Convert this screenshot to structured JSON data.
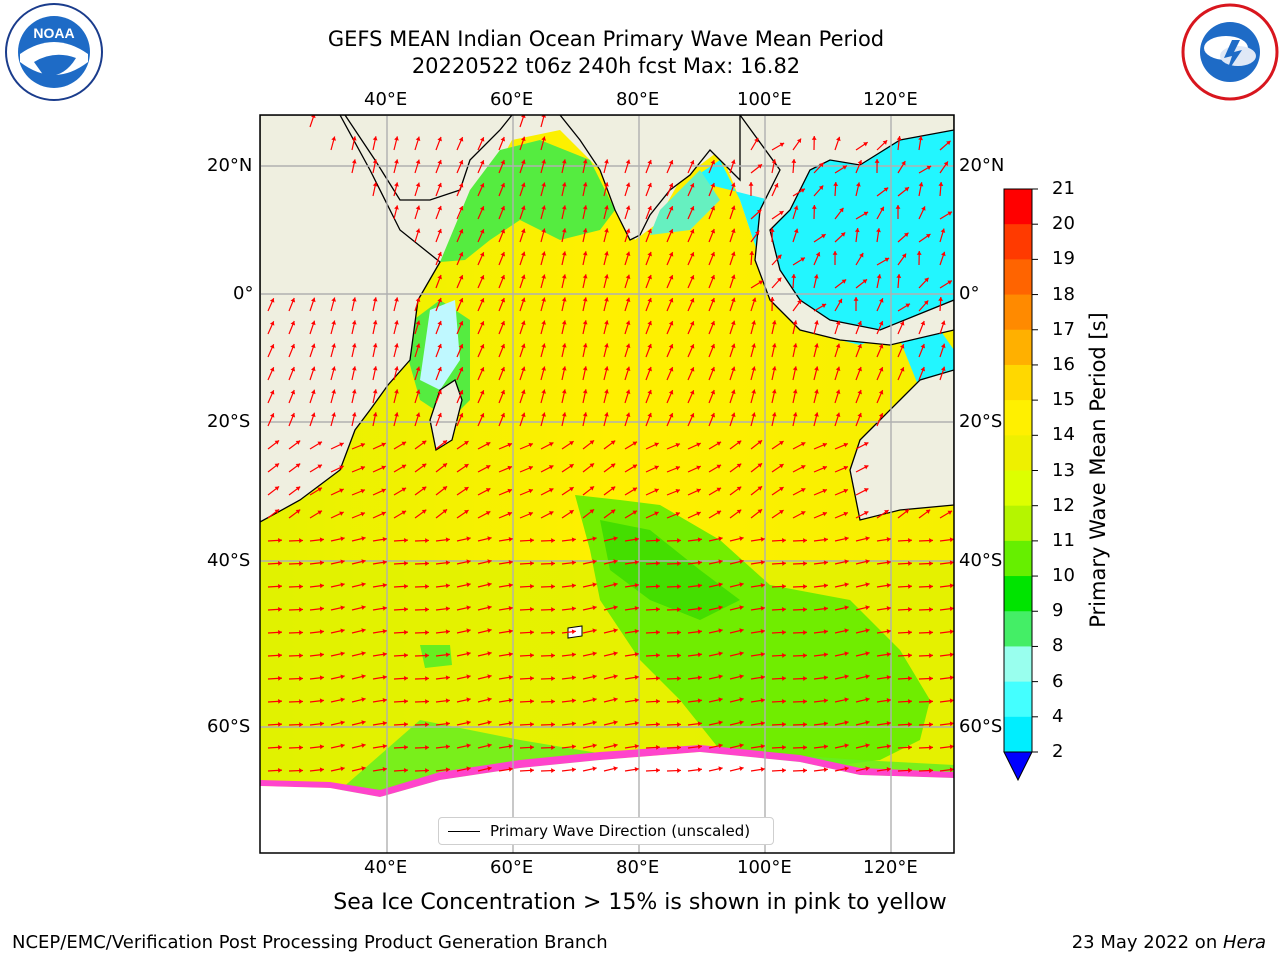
{
  "header": {
    "title_line1": "GEFS MEAN Indian Ocean Primary Wave Mean Period",
    "title_line2": "20220522 t06z 240h fcst   Max: 16.82"
  },
  "axes": {
    "lon_labels": [
      "40°E",
      "60°E",
      "80°E",
      "100°E",
      "120°E"
    ],
    "lat_labels": [
      "20°N",
      "0°",
      "20°S",
      "40°S",
      "60°S"
    ]
  },
  "colorbar": {
    "title": "Primary Wave Mean Period [s]",
    "ticks": [
      "21",
      "20",
      "19",
      "18",
      "17",
      "16",
      "15",
      "14",
      "13",
      "12",
      "11",
      "10",
      "9",
      "8",
      "6",
      "4",
      "2"
    ],
    "colors": [
      "#ff0000",
      "#ff3a00",
      "#ff6400",
      "#ff8a00",
      "#ffb000",
      "#ffd800",
      "#fff000",
      "#eef000",
      "#ddff00",
      "#b5f500",
      "#66ef00",
      "#00e400",
      "#44ee66",
      "#99ffee",
      "#44ffff",
      "#00eeff",
      "#0088ff"
    ],
    "extend_color": "#0000ff"
  },
  "legend": {
    "label": "Primary Wave Direction (unscaled)"
  },
  "footnote": "Sea Ice Concentration > 15% is shown in pink to yellow",
  "footer": {
    "left": "NCEP/EMC/Verification Post Processing Product Generation Branch",
    "right_prefix": "23 May 2022 on ",
    "right_host": "Hera"
  },
  "logos": {
    "left": "NOAA",
    "right": "NATIONAL WEATHER SERVICE"
  }
}
